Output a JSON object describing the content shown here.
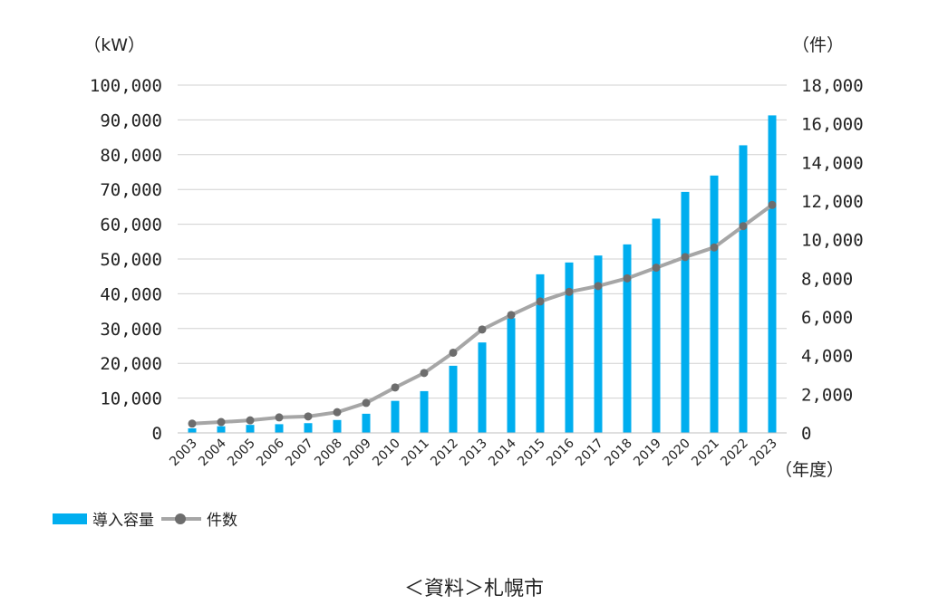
{
  "chart_data": {
    "type": "bar",
    "categories": [
      "2003",
      "2004",
      "2005",
      "2006",
      "2007",
      "2008",
      "2009",
      "2010",
      "2011",
      "2012",
      "2013",
      "2014",
      "2015",
      "2016",
      "2017",
      "2018",
      "2019",
      "2020",
      "2021",
      "2022",
      "2023"
    ],
    "series": [
      {
        "name": "導入容量",
        "type": "bar",
        "axis": "left",
        "color": "#00aeef",
        "values": [
          1300,
          1900,
          2300,
          2500,
          2800,
          3700,
          5500,
          9200,
          12000,
          19300,
          26000,
          33000,
          45600,
          49000,
          51000,
          54200,
          61600,
          69300,
          74000,
          82700,
          91300
        ]
      },
      {
        "name": "件数",
        "type": "line",
        "axis": "right",
        "color": "#a6a6a6",
        "marker_color": "#6d6d6d",
        "values": [
          480,
          560,
          650,
          800,
          850,
          1070,
          1550,
          2350,
          3100,
          4150,
          5350,
          6100,
          6800,
          7300,
          7600,
          8000,
          8550,
          9100,
          9600,
          10700,
          11800
        ]
      }
    ],
    "y_left": {
      "unit": "（kW）",
      "ylim": [
        0,
        100000
      ],
      "ticks": [
        "100,000",
        "90,000",
        "80,000",
        "70,000",
        "60,000",
        "50,000",
        "40,000",
        "30,000",
        "20,000",
        "10,000",
        "0"
      ]
    },
    "y_right": {
      "unit": "（件）",
      "ylim": [
        0,
        18000
      ],
      "ticks": [
        "18,000",
        "16,000",
        "14,000",
        "12,000",
        "10,000",
        "8,000",
        "6,000",
        "4,000",
        "2,000",
        "0"
      ]
    },
    "x_unit": "（年度）",
    "grid": true,
    "legend_position": "bottom-left"
  },
  "source": "＜資料＞札幌市"
}
